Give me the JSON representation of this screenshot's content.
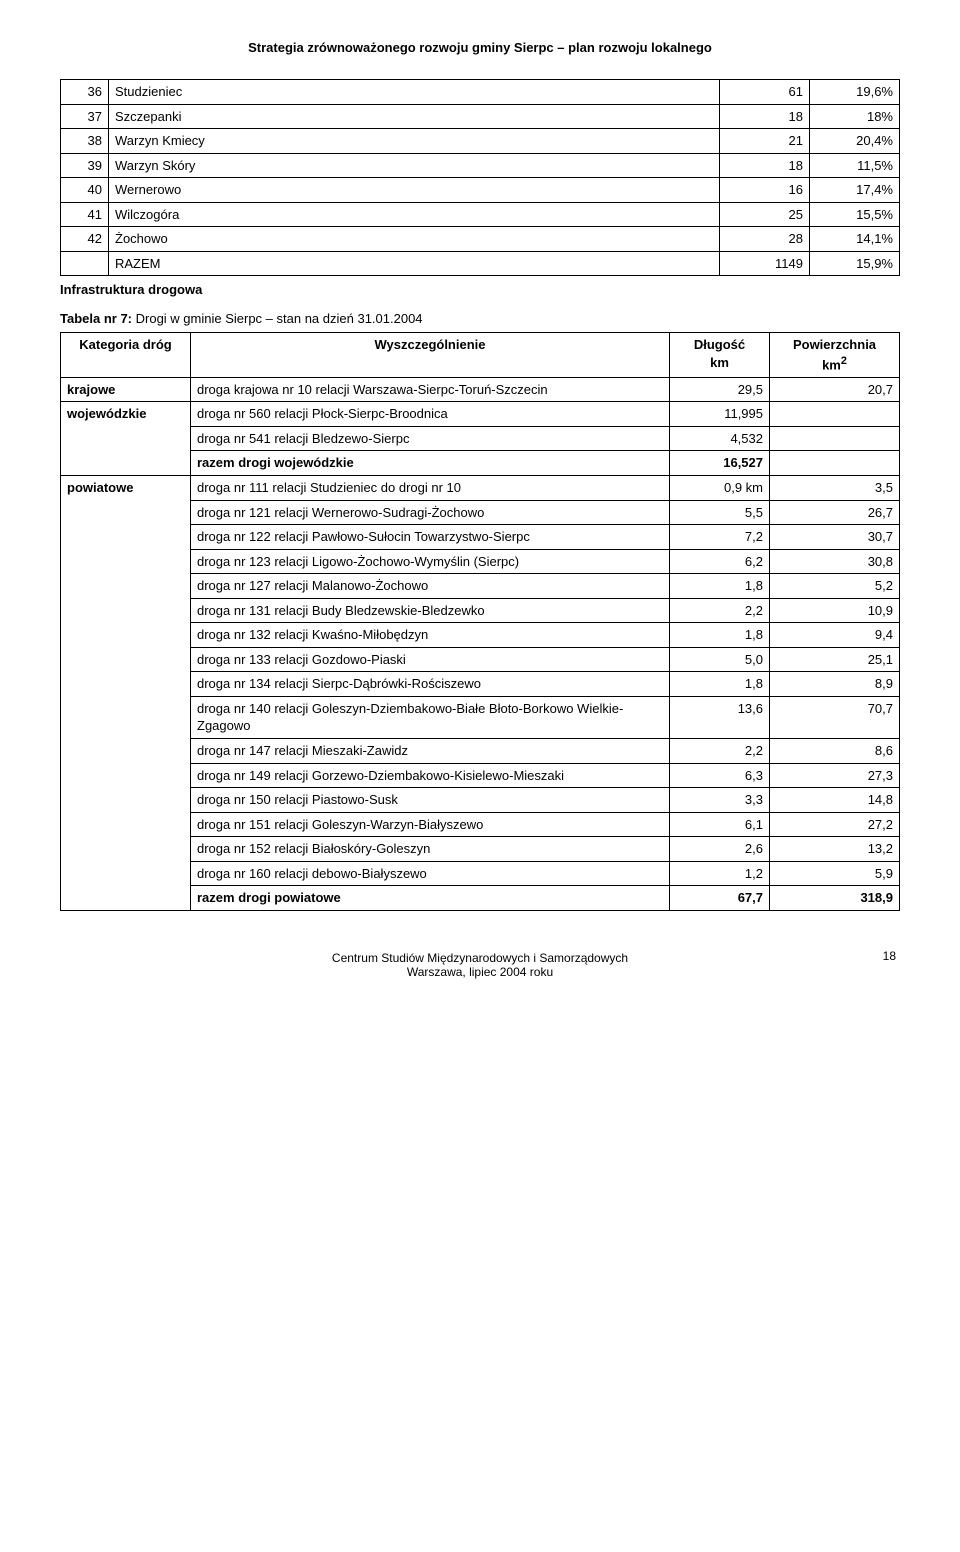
{
  "header": {
    "title": "Strategia zrównoważonego rozwoju gminy Sierpc – plan rozwoju lokalnego"
  },
  "table1": {
    "rows": [
      {
        "n": "36",
        "name": "Studzieniec",
        "v1": "61",
        "v2": "19,6%"
      },
      {
        "n": "37",
        "name": "Szczepanki",
        "v1": "18",
        "v2": "18%"
      },
      {
        "n": "38",
        "name": "Warzyn Kmiecy",
        "v1": "21",
        "v2": "20,4%"
      },
      {
        "n": "39",
        "name": "Warzyn Skóry",
        "v1": "18",
        "v2": "11,5%"
      },
      {
        "n": "40",
        "name": "Wernerowo",
        "v1": "16",
        "v2": "17,4%"
      },
      {
        "n": "41",
        "name": "Wilczogóra",
        "v1": "25",
        "v2": "15,5%"
      },
      {
        "n": "42",
        "name": "Żochowo",
        "v1": "28",
        "v2": "14,1%"
      }
    ],
    "razem_label": "RAZEM",
    "razem_v1": "1149",
    "razem_v2": "15,9%"
  },
  "section_label": "Infrastruktura drogowa",
  "caption": {
    "prefix": "Tabela nr 7:",
    "text": " Drogi w gminie Sierpc – stan na dzień 31.01.2004"
  },
  "table2": {
    "headers": {
      "cat": "Kategoria dróg",
      "desc": "Wyszczególnienie",
      "len": "Długość km",
      "area": "Powierzchnia km²"
    },
    "krajowe": {
      "label": "krajowe",
      "desc": "droga krajowa nr 10 relacji Warszawa-Sierpc-Toruń-Szczecin",
      "len": "29,5",
      "area": "20,7"
    },
    "wojewodzkie": {
      "label": "wojewódzkie",
      "rows": [
        {
          "desc": "droga nr 560 relacji Płock-Sierpc-Broodnica",
          "len": "11,995",
          "area": ""
        },
        {
          "desc": "droga nr 541 relacji Bledzewo-Sierpc",
          "len": "4,532",
          "area": ""
        }
      ],
      "razem_label": "razem drogi wojewódzkie",
      "razem_len": "16,527",
      "razem_area": ""
    },
    "powiatowe": {
      "label": "powiatowe",
      "rows": [
        {
          "desc": "droga nr 111 relacji Studzieniec do drogi nr 10",
          "len": "0,9 km",
          "area": "3,5"
        },
        {
          "desc": "droga nr 121 relacji Wernerowo-Sudragi-Żochowo",
          "len": "5,5",
          "area": "26,7"
        },
        {
          "desc": "droga nr 122 relacji Pawłowo-Sułocin Towarzystwo-Sierpc",
          "len": "7,2",
          "area": "30,7"
        },
        {
          "desc": "droga nr 123 relacji Ligowo-Żochowo-Wymyślin (Sierpc)",
          "len": "6,2",
          "area": "30,8"
        },
        {
          "desc": "droga nr 127 relacji Malanowo-Żochowo",
          "len": "1,8",
          "area": "5,2"
        },
        {
          "desc": "droga nr 131 relacji Budy Bledzewskie-Bledzewko",
          "len": "2,2",
          "area": "10,9"
        },
        {
          "desc": "droga nr 132 relacji Kwaśno-Miłobędzyn",
          "len": "1,8",
          "area": "9,4"
        },
        {
          "desc": "droga nr 133 relacji Gozdowo-Piaski",
          "len": "5,0",
          "area": "25,1"
        },
        {
          "desc": "droga nr 134 relacji Sierpc-Dąbrówki-Rościszewo",
          "len": "1,8",
          "area": "8,9"
        },
        {
          "desc": "droga nr 140 relacji Goleszyn-Dziembakowo-Białe Błoto-Borkowo Wielkie-Zgagowo",
          "len": "13,6",
          "area": "70,7"
        },
        {
          "desc": "droga nr 147 relacji Mieszaki-Zawidz",
          "len": "2,2",
          "area": "8,6"
        },
        {
          "desc": "droga nr 149 relacji Gorzewo-Dziembakowo-Kisielewo-Mieszaki",
          "len": "6,3",
          "area": "27,3"
        },
        {
          "desc": "droga nr 150 relacji Piastowo-Susk",
          "len": "3,3",
          "area": "14,8"
        },
        {
          "desc": "droga nr 151 relacji Goleszyn-Warzyn-Białyszewo",
          "len": "6,1",
          "area": "27,2"
        },
        {
          "desc": "droga nr 152 relacji Białoskóry-Goleszyn",
          "len": "2,6",
          "area": "13,2"
        },
        {
          "desc": "droga nr 160 relacji debowo-Białyszewo",
          "len": "1,2",
          "area": "5,9"
        }
      ],
      "razem_label": "razem drogi powiatowe",
      "razem_len": "67,7",
      "razem_area": "318,9"
    }
  },
  "footer": {
    "line1": "Centrum Studiów Międzynarodowych i Samorządowych",
    "line2": "Warszawa, lipiec 2004 roku",
    "page": "18"
  }
}
